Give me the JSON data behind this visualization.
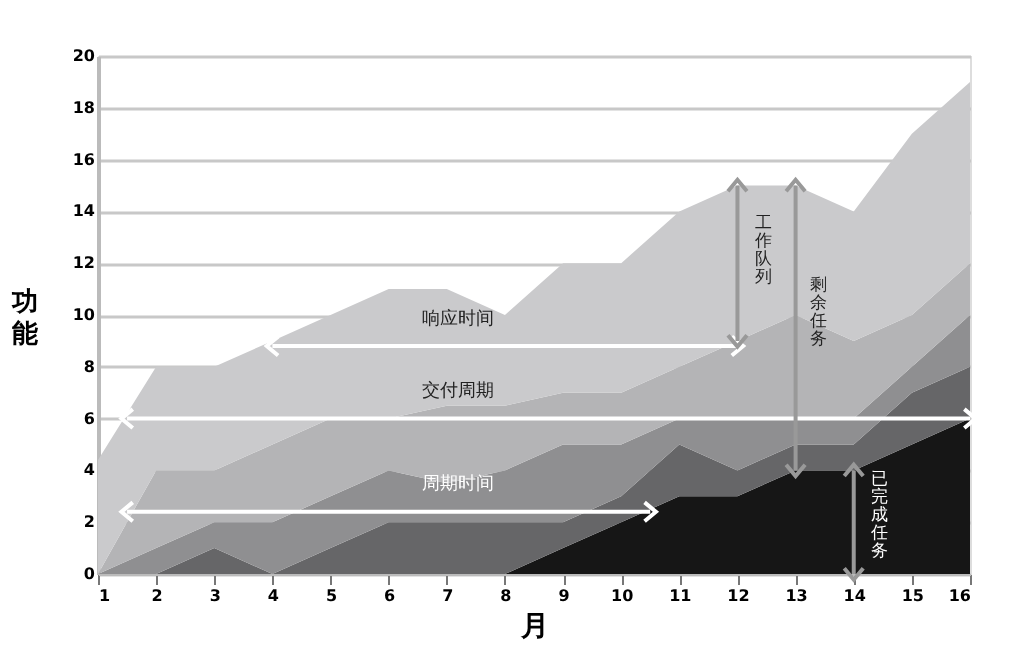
{
  "chart_data": {
    "type": "area",
    "stacked": true,
    "xlabel": "月",
    "ylabel": "功能",
    "x": [
      1,
      2,
      3,
      4,
      5,
      6,
      7,
      8,
      9,
      10,
      11,
      12,
      13,
      14,
      15,
      16
    ],
    "series": [
      {
        "color": "#161616",
        "values": [
          0,
          0,
          0,
          0,
          0,
          0,
          0,
          0,
          1,
          2,
          3,
          3,
          4,
          4,
          5,
          6
        ]
      },
      {
        "color": "#666668",
        "values": [
          0,
          0,
          1,
          0,
          1,
          2,
          2,
          2,
          1,
          1,
          2,
          1,
          1,
          1,
          2,
          2
        ]
      },
      {
        "color": "#8f8f91",
        "values": [
          0,
          1,
          1,
          2,
          2,
          2,
          1.5,
          2,
          3,
          2,
          1,
          2,
          1,
          1,
          1,
          2
        ]
      },
      {
        "color": "#b4b4b6",
        "values": [
          0,
          3,
          2,
          3,
          3,
          2,
          3,
          2.5,
          2,
          2,
          2,
          3,
          4,
          3,
          2,
          2
        ]
      },
      {
        "color": "#cacacc",
        "values": [
          4.4,
          4,
          4,
          4,
          4,
          5,
          4.5,
          3.5,
          5,
          5,
          6,
          6,
          5,
          5,
          7,
          7
        ]
      },
      {
        "type": "line",
        "color": "#ffffff",
        "marker": "cross",
        "x": [
          4,
          12
        ],
        "values": [
          8.8,
          8.8
        ]
      },
      {
        "type": "line",
        "color": "#ffffff",
        "marker": "cross",
        "x": [
          1.5,
          16
        ],
        "values": [
          6,
          6
        ]
      },
      {
        "type": "line",
        "color": "#ffffff",
        "marker": "cross",
        "x": [
          1.5,
          10.5
        ],
        "values": [
          2.4,
          2.4
        ]
      }
    ],
    "xlim": [
      1,
      16
    ],
    "xticks": [
      1,
      2,
      3,
      4,
      5,
      6,
      7,
      8,
      9,
      10,
      11,
      12,
      13,
      14,
      15,
      16
    ],
    "ylim": [
      0,
      20
    ],
    "yticks": [
      0,
      2,
      4,
      6,
      8,
      10,
      12,
      14,
      16,
      18,
      20
    ],
    "grid": "y",
    "annotations": [
      "响应时间",
      "交付周期",
      "周期时间",
      {
        "text": "工作队列",
        "x": 12,
        "y": 15
      },
      "剩余任务",
      {
        "text": "已完成任务",
        "x": 14,
        "y": 4
      }
    ]
  }
}
